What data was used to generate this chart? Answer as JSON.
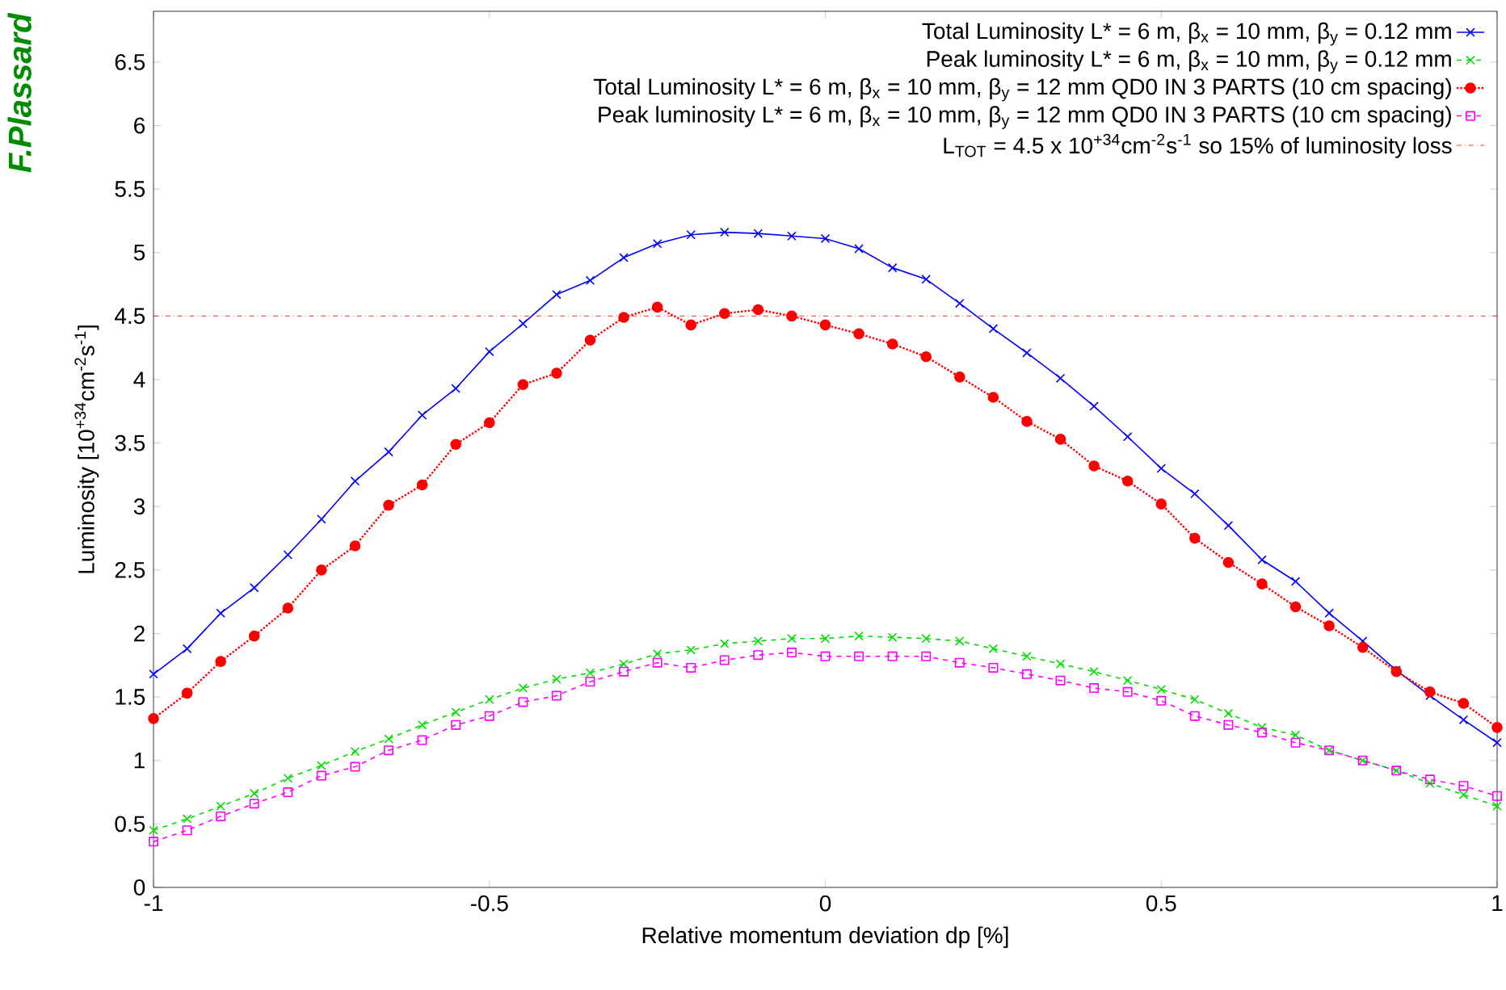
{
  "chart_data": {
    "type": "line",
    "xlabel": "Relative momentum deviation dp [%]",
    "ylabel": "Luminosity [10$^{+34}$cm$^{-2}$s$^{-1}$]",
    "annotations": [
      "F.Plassard"
    ],
    "x": [
      -1,
      -0.95,
      -0.9,
      -0.85,
      -0.8,
      -0.75,
      -0.7,
      -0.65,
      -0.6,
      -0.55,
      -0.5,
      -0.45,
      -0.4,
      -0.35,
      -0.3,
      -0.25,
      -0.2,
      -0.15,
      -0.1,
      -0.05,
      0,
      0.05,
      0.1,
      0.15,
      0.2,
      0.25,
      0.3,
      0.35,
      0.4,
      0.45,
      0.5,
      0.55,
      0.6,
      0.65,
      0.7,
      0.75,
      0.8,
      0.85,
      0.9,
      0.95,
      1
    ],
    "series": [
      {
        "name": "Total Luminosity L* = 6 m, β$_{x}$ = 10 mm, β$_{y}$ = 0.12 mm",
        "color": "#0000ff",
        "marker": "cross",
        "line_style": "solid",
        "values": [
          1.68,
          1.88,
          2.16,
          2.36,
          2.62,
          2.9,
          3.2,
          3.43,
          3.72,
          3.93,
          4.22,
          4.44,
          4.67,
          4.78,
          4.96,
          5.07,
          5.14,
          5.16,
          5.15,
          5.13,
          5.11,
          5.03,
          4.88,
          4.79,
          4.6,
          4.4,
          4.21,
          4.01,
          3.79,
          3.55,
          3.3,
          3.1,
          2.85,
          2.58,
          2.41,
          2.16,
          1.94,
          1.71,
          1.51,
          1.32,
          1.14
        ]
      },
      {
        "name": "Peak luminosity L* = 6 m, β$_{x}$ = 10 mm, β$_{y}$ = 0.12 mm",
        "color": "#00dd00",
        "marker": "cross",
        "line_style": "dashed",
        "values": [
          0.45,
          0.54,
          0.64,
          0.74,
          0.86,
          0.96,
          1.07,
          1.17,
          1.28,
          1.38,
          1.48,
          1.57,
          1.64,
          1.69,
          1.76,
          1.84,
          1.87,
          1.92,
          1.94,
          1.96,
          1.96,
          1.98,
          1.97,
          1.96,
          1.94,
          1.88,
          1.82,
          1.76,
          1.7,
          1.63,
          1.56,
          1.48,
          1.37,
          1.26,
          1.2,
          1.08,
          1.0,
          0.92,
          0.82,
          0.73,
          0.64
        ]
      },
      {
        "name": "Total Luminosity L* = 6 m, β$_{x}$ = 10 mm, β$_{y}$ = 12 mm  QD0 IN 3 PARTS (10 cm spacing)",
        "color": "#ff0000",
        "marker": "circle",
        "line_style": "dotted",
        "values": [
          1.33,
          1.53,
          1.78,
          1.98,
          2.2,
          2.5,
          2.69,
          3.01,
          3.17,
          3.49,
          3.66,
          3.96,
          4.05,
          4.31,
          4.49,
          4.57,
          4.43,
          4.52,
          4.55,
          4.5,
          4.43,
          4.36,
          4.28,
          4.18,
          4.02,
          3.86,
          3.67,
          3.53,
          3.32,
          3.2,
          3.02,
          2.75,
          2.56,
          2.39,
          2.21,
          2.06,
          1.89,
          1.7,
          1.54,
          1.45,
          1.26
        ]
      },
      {
        "name": "Peak luminosity L* = 6 m, β$_{x}$ = 10 mm, β$_{y}$ = 12 mm  QD0 IN 3 PARTS (10 cm spacing)",
        "color": "#ff00ff",
        "marker": "square",
        "line_style": "dashed",
        "values": [
          0.36,
          0.45,
          0.56,
          0.66,
          0.75,
          0.88,
          0.95,
          1.08,
          1.16,
          1.28,
          1.35,
          1.46,
          1.51,
          1.62,
          1.7,
          1.77,
          1.73,
          1.79,
          1.83,
          1.85,
          1.82,
          1.82,
          1.82,
          1.82,
          1.77,
          1.73,
          1.68,
          1.63,
          1.57,
          1.54,
          1.47,
          1.35,
          1.28,
          1.22,
          1.14,
          1.08,
          1.0,
          0.92,
          0.85,
          0.8,
          0.72
        ]
      }
    ],
    "ref_lines": [
      {
        "axis": "y",
        "value": 4.5,
        "label": "L$_{TOT}$ = 4.5 x 10$^{+34}$cm$^{-2}$s$^{-1}$ so 15% of luminosity loss",
        "color": "#ff0000",
        "line_style": "dashdot"
      }
    ],
    "xlim": [
      -1,
      1
    ],
    "ylim": [
      0,
      6.9
    ],
    "xticks": [
      -1,
      -0.5,
      0,
      0.5,
      1
    ],
    "yticks": [
      0,
      0.5,
      1,
      1.5,
      2,
      2.5,
      3,
      3.5,
      4,
      4.5,
      5,
      5.5,
      6,
      6.5
    ],
    "grid": false,
    "legend": "top right"
  }
}
